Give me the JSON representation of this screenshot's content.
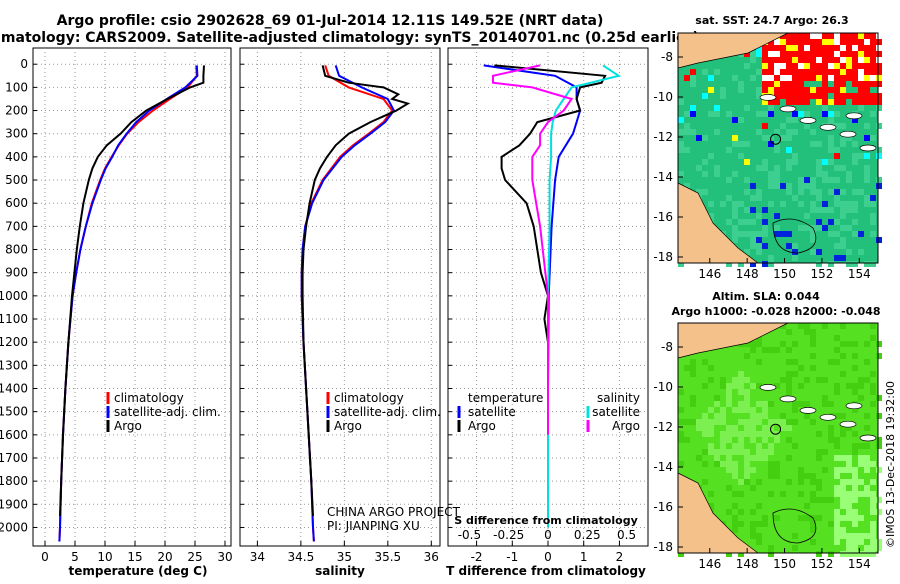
{
  "title_line1": "Argo profile: csio 2902628_69 01-Jul-2014 12.11S 149.52E (NRT data)",
  "title_line2": "Climatology: CARS2009. Satellite-adjusted climatology: synTS_20140701.nc (0.25d earlier)",
  "colors": {
    "climatology": "#ff0000",
    "satellite": "#0000ff",
    "argo": "#000000",
    "sat_s": "#00e0e0",
    "clim_s": "#ff00ff"
  },
  "depth_ticks": [
    "0",
    "100",
    "200",
    "300",
    "400",
    "500",
    "600",
    "700",
    "800",
    "900",
    "1000",
    "1100",
    "1200",
    "1300",
    "1400",
    "1500",
    "1600",
    "1700",
    "1800",
    "1900",
    "2000"
  ],
  "chart_data": [
    {
      "type": "line",
      "title": "",
      "xlabel": "temperature (deg C)",
      "ylabel": "depth (dbar)",
      "xlim": [
        -2,
        31
      ],
      "ylim": [
        2080,
        0
      ],
      "xticks": [
        "0",
        "5",
        "10",
        "15",
        "20",
        "25",
        "30"
      ],
      "legend": {
        "placement": "bottom-right",
        "entries": [
          "climatology",
          "satellite-adj. clim.",
          "Argo"
        ]
      },
      "series": [
        {
          "name": "climatology",
          "depth": [
            5,
            50,
            100,
            150,
            200,
            250,
            300,
            350,
            400,
            450,
            500,
            600,
            700,
            800,
            900,
            1000,
            1200,
            1400,
            1600,
            1800,
            2000,
            2060
          ],
          "values": [
            25.2,
            25.3,
            23.8,
            20.8,
            18.0,
            15.6,
            13.7,
            12.3,
            11.1,
            10.0,
            9.2,
            7.8,
            6.8,
            5.9,
            5.2,
            4.6,
            3.9,
            3.4,
            3.0,
            2.7,
            2.5,
            2.4
          ]
        },
        {
          "name": "satellite-adj. clim.",
          "depth": [
            5,
            50,
            100,
            150,
            200,
            250,
            300,
            350,
            400,
            450,
            500,
            600,
            700,
            800,
            900,
            1000,
            1200,
            1400,
            1600,
            1800,
            2000,
            2060
          ],
          "values": [
            25.3,
            25.4,
            23.4,
            20.3,
            17.4,
            15.2,
            13.6,
            12.2,
            11.2,
            10.1,
            9.3,
            7.9,
            6.8,
            5.9,
            5.2,
            4.6,
            3.9,
            3.4,
            3.0,
            2.7,
            2.5,
            2.4
          ]
        },
        {
          "name": "Argo",
          "depth": [
            5,
            50,
            80,
            100,
            150,
            200,
            250,
            300,
            350,
            400,
            450,
            500,
            600,
            700,
            800,
            900,
            1000,
            1200,
            1400,
            1600,
            1800,
            1950
          ],
          "values": [
            26.5,
            26.4,
            26.4,
            24.2,
            20.4,
            16.9,
            14.4,
            12.6,
            10.3,
            8.8,
            7.9,
            7.3,
            6.4,
            5.8,
            5.3,
            4.9,
            4.5,
            3.9,
            3.4,
            3.0,
            2.7,
            2.5
          ]
        }
      ]
    },
    {
      "type": "line",
      "title": "",
      "xlabel": "salinity",
      "ylabel": "",
      "xlim": [
        33.8,
        36.1
      ],
      "ylim": [
        2080,
        0
      ],
      "xticks": [
        "34",
        "34.5",
        "35",
        "35.5",
        "36"
      ],
      "legend": {
        "placement": "bottom-right",
        "entries": [
          "climatology",
          "satellite-adj. clim.",
          "Argo"
        ]
      },
      "annotations": [
        "CHINA ARGO PROJECT",
        "PI: JIANPING XU"
      ],
      "series": [
        {
          "name": "climatology",
          "depth": [
            5,
            50,
            100,
            150,
            200,
            250,
            300,
            350,
            400,
            500,
            600,
            700,
            800,
            900,
            1000,
            1200,
            1400,
            1600,
            1800,
            2000,
            2060
          ],
          "values": [
            34.78,
            34.82,
            35.05,
            35.45,
            35.55,
            35.45,
            35.28,
            35.1,
            34.95,
            34.75,
            34.62,
            34.55,
            34.52,
            34.51,
            34.51,
            34.53,
            34.56,
            34.59,
            34.62,
            34.64,
            34.65
          ]
        },
        {
          "name": "satellite-adj. clim.",
          "depth": [
            5,
            50,
            100,
            150,
            200,
            250,
            300,
            350,
            400,
            500,
            600,
            700,
            800,
            900,
            1000,
            1200,
            1400,
            1600,
            1800,
            2000,
            2060
          ],
          "values": [
            34.9,
            34.94,
            35.2,
            35.5,
            35.57,
            35.47,
            35.3,
            35.12,
            34.97,
            34.76,
            34.63,
            34.55,
            34.52,
            34.51,
            34.51,
            34.53,
            34.56,
            34.59,
            34.62,
            34.64,
            34.65
          ]
        },
        {
          "name": "Argo",
          "depth": [
            5,
            50,
            80,
            100,
            130,
            150,
            170,
            200,
            250,
            300,
            350,
            400,
            450,
            500,
            600,
            700,
            800,
            900,
            1000,
            1200,
            1400,
            1600,
            1800,
            1950
          ],
          "values": [
            34.75,
            34.78,
            35.05,
            35.45,
            35.62,
            35.55,
            35.73,
            35.6,
            35.3,
            35.05,
            34.9,
            34.8,
            34.72,
            34.66,
            34.6,
            34.56,
            34.53,
            34.52,
            34.52,
            34.53,
            34.56,
            34.59,
            34.62,
            34.64
          ]
        }
      ]
    },
    {
      "type": "line",
      "title": "",
      "xlabel": "T difference from climatology",
      "xlabel_top": "S difference from climatology",
      "ylabel": "",
      "xlim": [
        -2.8,
        2.8
      ],
      "ylim": [
        2080,
        0
      ],
      "xticks": [
        "-2",
        "-1",
        "0",
        "1",
        "2"
      ],
      "xticks_top": [
        "-0.5",
        "-0.25",
        "0",
        "0.25",
        "0.5"
      ],
      "legend": {
        "placement": "bottom",
        "entries": [
          "temperature",
          "satellite",
          "Argo",
          "salinity",
          "satellite",
          "Argo"
        ]
      },
      "series": [
        {
          "name": "temperature satellite",
          "depth": [
            5,
            50,
            100,
            150,
            200,
            250,
            300,
            400,
            500,
            700,
            1000,
            1400,
            2000
          ],
          "values": [
            -1.8,
            0.2,
            0.8,
            0.8,
            0.9,
            0.8,
            0.7,
            0.3,
            0.2,
            0.1,
            0.02,
            0.0,
            0.0
          ]
        },
        {
          "name": "temperature Argo",
          "depth": [
            5,
            50,
            80,
            100,
            150,
            200,
            250,
            300,
            350,
            400,
            450,
            500,
            600,
            700,
            800,
            900,
            1000,
            1100,
            1200,
            1400,
            1500
          ],
          "values": [
            -1.5,
            1.6,
            1.5,
            0.9,
            0.8,
            0.9,
            -0.3,
            -0.5,
            -0.8,
            -1.3,
            -1.3,
            -1.2,
            -0.6,
            -0.4,
            -0.3,
            -0.2,
            0.0,
            -0.1,
            0.0,
            0.0,
            0.0
          ]
        },
        {
          "name": "salinity satellite",
          "depth": [
            5,
            50,
            100,
            150,
            200,
            250,
            300,
            400,
            500,
            700,
            1000,
            1400,
            2000
          ],
          "values": [
            0.35,
            0.45,
            0.15,
            0.1,
            0.05,
            0.03,
            0.02,
            0.02,
            0.01,
            0.01,
            0.0,
            0.0,
            0.0
          ]
        },
        {
          "name": "salinity Argo",
          "depth": [
            5,
            50,
            80,
            100,
            150,
            200,
            250,
            300,
            350,
            400,
            500,
            700,
            1000,
            1400,
            1600
          ],
          "values": [
            -0.05,
            -0.35,
            -0.35,
            -0.1,
            0.15,
            0.1,
            0.0,
            -0.05,
            -0.05,
            -0.1,
            -0.1,
            -0.05,
            0.0,
            0.0,
            0.0
          ]
        }
      ]
    }
  ],
  "maps": [
    {
      "title": "sat. SST: 24.7 Argo: 26.3",
      "lon_ticks": [
        "146",
        "148",
        "150",
        "152",
        "154"
      ],
      "lat_ticks": [
        "-8",
        "-10",
        "-12",
        "-14",
        "-16",
        "-18"
      ]
    },
    {
      "title_line1": "Altim. SLA: 0.044",
      "title_line2": "Argo h1000: -0.028 h2000: -0.048",
      "lon_ticks": [
        "146",
        "148",
        "150",
        "152",
        "154"
      ],
      "lat_ticks": [
        "-8",
        "-10",
        "-12",
        "-14",
        "-16",
        "-18"
      ]
    }
  ],
  "credit": "©IMOS 13-Dec-2018 19:32:00"
}
